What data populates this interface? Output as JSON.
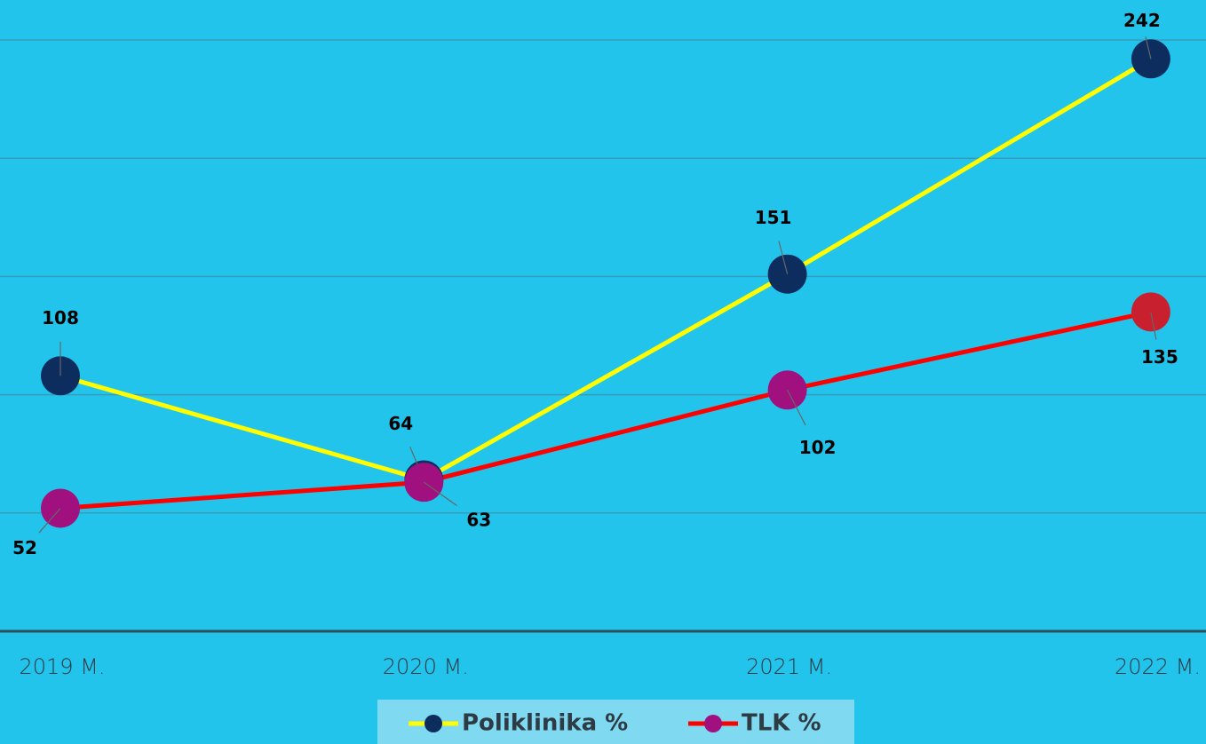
{
  "chart_data": {
    "type": "line",
    "categories": [
      "2019 M.",
      "2020 M.",
      "2021 M.",
      "2022 M."
    ],
    "series": [
      {
        "name": "Poliklinika %",
        "color": "#ffff00",
        "marker_colors": [
          "#0d2d5e",
          "#0d2d5e",
          "#0d2d5e",
          "#0d2d5e"
        ],
        "values": [
          108,
          64,
          151,
          242
        ]
      },
      {
        "name": "TLK %",
        "color": "#ff0000",
        "marker_colors": [
          "#a0107f",
          "#a0107f",
          "#a0107f",
          "#c8202e"
        ],
        "values": [
          52,
          63,
          102,
          135
        ]
      }
    ],
    "ylim": [
      0,
      250
    ],
    "yticks": [
      0,
      50,
      100,
      150,
      200,
      250
    ],
    "grid": true,
    "legend": "bottom"
  }
}
